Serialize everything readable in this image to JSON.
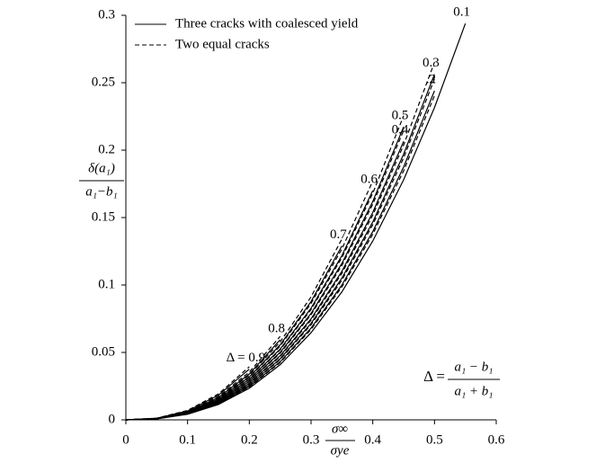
{
  "chart_data": {
    "type": "line",
    "x_label": {
      "numerator": "σ∞",
      "denominator": "σye"
    },
    "y_label": {
      "numerator": "δ(a₁)",
      "denominator": "a₁−b₁"
    },
    "annotation": {
      "lhs": "Δ =",
      "numerator": "a₁ − b₁",
      "denominator": "a₁ + b₁"
    },
    "legend": [
      {
        "name": "Three cracks with coalesced yield",
        "style": "solid"
      },
      {
        "name": "Two equal cracks",
        "style": "dashed"
      }
    ],
    "x": [
      0,
      0.05,
      0.1,
      0.15,
      0.2,
      0.25,
      0.3,
      0.35,
      0.4,
      0.45,
      0.5,
      0.55
    ],
    "xlim": [
      0,
      0.6
    ],
    "xticks": [
      0,
      0.1,
      0.2,
      0.3,
      0.4,
      0.5,
      0.6
    ],
    "ylim": [
      0,
      0.3
    ],
    "yticks": [
      0,
      0.05,
      0.1,
      0.15,
      0.2,
      0.25,
      0.3
    ],
    "color": "#000000",
    "series": [
      {
        "label": "0.1",
        "style": "solid",
        "values": [
          0,
          0.0007,
          0.0041,
          0.0114,
          0.0234,
          0.0409,
          0.0646,
          0.0949,
          0.1326,
          0.178,
          0.2316,
          0.2939
        ]
      },
      {
        "label": ".2",
        "style": "solid",
        "values": [
          0,
          0.0008,
          0.0044,
          0.012,
          0.0247,
          0.0431,
          0.068,
          0.1,
          0.1396,
          0.1875,
          0.244,
          null
        ]
      },
      {
        "label": "0.3",
        "style": "solid",
        "values": [
          0,
          0.0008,
          0.0046,
          0.0126,
          0.0259,
          0.0453,
          0.0715,
          0.1051,
          0.1467,
          0.197,
          0.2563,
          null
        ]
      },
      {
        "label": "0.4",
        "style": "solid",
        "values": [
          0,
          0.0008,
          0.0048,
          0.0132,
          0.0272,
          0.0475,
          0.0749,
          0.1102,
          0.1538,
          0.2065,
          null,
          null
        ]
      },
      {
        "label": "0.5",
        "style": "solid",
        "values": [
          0,
          0.0009,
          0.0051,
          0.0139,
          0.0286,
          0.05,
          0.0789,
          0.116,
          0.1619,
          0.2173,
          null,
          null
        ]
      },
      {
        "label": "0.6",
        "style": "solid",
        "values": [
          0,
          0.0009,
          0.0053,
          0.0146,
          0.0301,
          0.0525,
          0.0828,
          0.1218,
          0.17,
          null,
          null,
          null
        ]
      },
      {
        "label": "0.7",
        "style": "solid",
        "values": [
          0,
          0.001,
          0.0056,
          0.0155,
          0.0318,
          0.0556,
          0.0877,
          0.129,
          null,
          null,
          null,
          null
        ]
      },
      {
        "label": "0.8",
        "style": "solid",
        "values": [
          0,
          0.0011,
          0.006,
          0.0166,
          0.034,
          0.0594,
          null,
          null,
          null,
          null,
          null,
          null
        ]
      },
      {
        "label": "Δ = 0.9",
        "style": "solid",
        "values": [
          0,
          0.0012,
          0.0066,
          0.0183,
          0.0376,
          null,
          null,
          null,
          null,
          null,
          null,
          null
        ]
      },
      {
        "style": "dashed",
        "values": [
          0,
          0.0008,
          0.0043,
          0.0119,
          0.0243,
          0.0425,
          0.067,
          0.0986,
          0.1376,
          0.1847,
          0.2404,
          null
        ]
      },
      {
        "style": "dashed",
        "values": [
          0,
          0.0008,
          0.0045,
          0.0125,
          0.0256,
          0.0447,
          0.0705,
          0.1036,
          0.1447,
          0.1943,
          0.2528,
          null
        ]
      },
      {
        "style": "dashed",
        "values": [
          0,
          0.0008,
          0.0047,
          0.0131,
          0.0268,
          0.0469,
          0.0739,
          0.1087,
          0.1518,
          0.2038,
          0.2652,
          null
        ]
      },
      {
        "style": "dashed",
        "values": [
          0,
          0.0009,
          0.005,
          0.0138,
          0.0283,
          0.0494,
          0.0779,
          0.1145,
          0.1599,
          0.2146,
          null,
          null
        ]
      },
      {
        "style": "dashed",
        "values": [
          0,
          0.0009,
          0.0052,
          0.0145,
          0.0297,
          0.0519,
          0.0818,
          0.1203,
          0.168,
          0.2255,
          null,
          null
        ]
      },
      {
        "style": "dashed",
        "values": [
          0,
          0.001,
          0.0055,
          0.0152,
          0.0313,
          0.0547,
          0.0863,
          0.1268,
          0.1771,
          null,
          null,
          null
        ]
      },
      {
        "style": "dashed",
        "values": [
          0,
          0.001,
          0.0058,
          0.0161,
          0.0331,
          0.0578,
          0.0912,
          0.1341,
          null,
          null,
          null,
          null
        ]
      },
      {
        "style": "dashed",
        "values": [
          0,
          0.0011,
          0.0063,
          0.0173,
          0.0354,
          0.0619,
          null,
          null,
          null,
          null,
          null,
          null
        ]
      },
      {
        "style": "dashed",
        "values": [
          0,
          0.0012,
          0.007,
          0.0192,
          0.0394,
          null,
          null,
          null,
          null,
          null,
          null,
          null
        ]
      }
    ]
  }
}
